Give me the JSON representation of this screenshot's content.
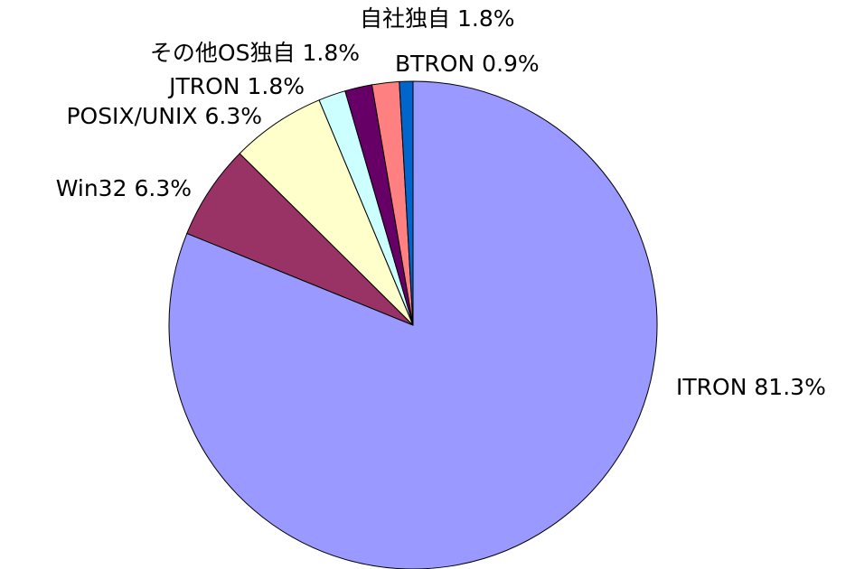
{
  "chart_data": {
    "type": "pie",
    "categories": [
      "ITRON",
      "Win32",
      "POSIX/UNIX",
      "JTRON",
      "その他OS独自",
      "自社独自",
      "BTRON"
    ],
    "values": [
      81.3,
      6.3,
      6.3,
      1.8,
      1.8,
      1.8,
      0.9
    ],
    "value_labels": [
      "81.3%",
      "6.3%",
      "6.3%",
      "1.8%",
      "1.8%",
      "1.8%",
      "0.9%"
    ],
    "colors": [
      "#9999ff",
      "#993366",
      "#ffffcc",
      "#ccffff",
      "#660066",
      "#ff8080",
      "#0066cc"
    ]
  }
}
